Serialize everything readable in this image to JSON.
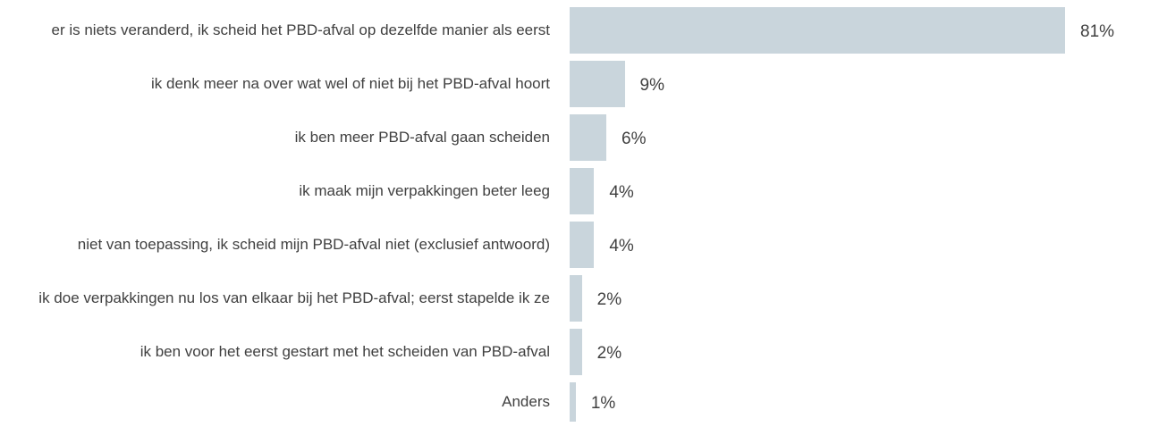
{
  "chart_data": {
    "type": "bar",
    "orientation": "horizontal",
    "color": "#c9d5dc",
    "categories": [
      "er is niets veranderd, ik scheid het PBD-afval op dezelfde manier als eerst",
      "ik denk meer na over wat wel of niet bij het PBD-afval hoort",
      "ik ben meer PBD-afval gaan scheiden",
      "ik maak mijn verpakkingen beter leeg",
      "niet van toepassing, ik scheid mijn PBD-afval niet (exclusief antwoord)",
      "ik doe verpakkingen nu los van elkaar bij het PBD-afval; eerst stapelde ik ze",
      "ik ben voor het eerst gestart met het scheiden van PBD-afval",
      "Anders"
    ],
    "values": [
      81,
      9,
      6,
      4,
      4,
      2,
      2,
      1
    ],
    "value_labels": [
      "81%",
      "9%",
      "6%",
      "4%",
      "4%",
      "2%",
      "2%",
      "1%"
    ]
  }
}
